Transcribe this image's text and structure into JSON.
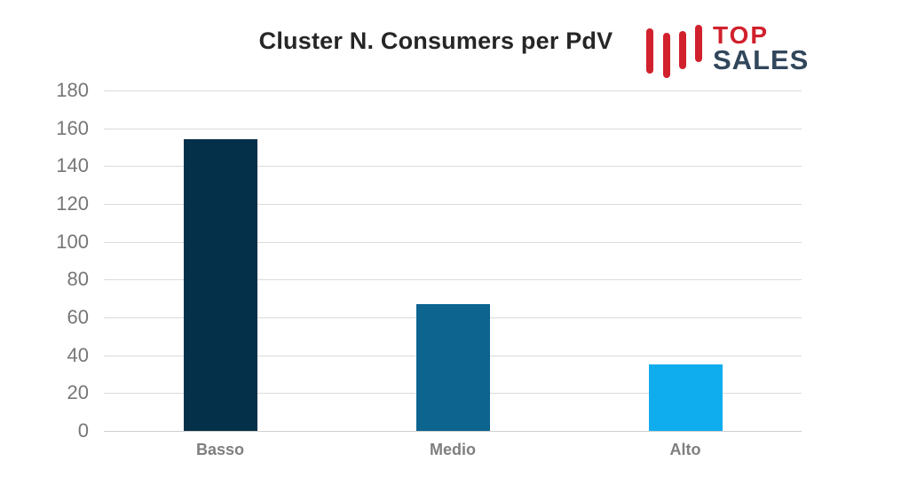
{
  "page": {
    "background": "#ffffff"
  },
  "logo": {
    "top_text": "TOP",
    "bottom_text": "SALES",
    "red": "#d0212d",
    "slate": "#31475c"
  },
  "chart_data": {
    "type": "bar",
    "title": "Cluster N. Consumers per PdV",
    "title_color": "#262626",
    "categories": [
      "Basso",
      "Medio",
      "Alto"
    ],
    "values": [
      154,
      67,
      35
    ],
    "bar_colors": [
      "#053049",
      "#0c648f",
      "#10adee"
    ],
    "xlabel": "",
    "ylabel": "",
    "ylim": [
      0,
      180
    ],
    "ytick_interval": 20,
    "yticks": [
      0,
      20,
      40,
      60,
      80,
      100,
      120,
      140,
      160,
      180
    ],
    "grid": true,
    "gridline_color": "#dbdbdb",
    "axis_line_color": "#cfcfcf",
    "ytick_label_color": "#767676",
    "xtick_label_color": "#7f7f7f",
    "legend": false
  }
}
